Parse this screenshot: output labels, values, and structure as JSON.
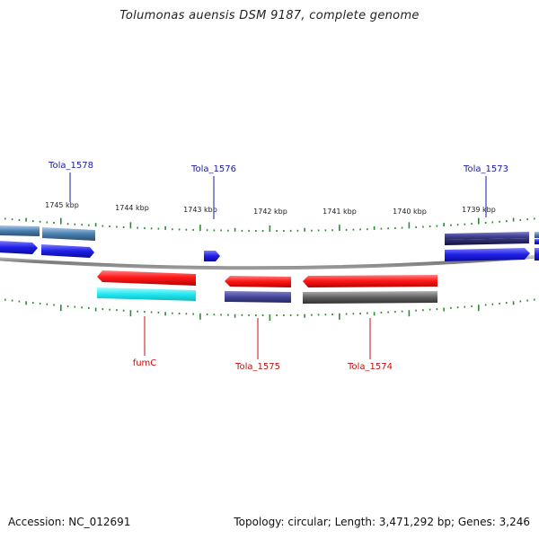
{
  "title": "Tolumonas auensis DSM 9187, complete genome",
  "footer": {
    "accession": "Accession: NC_012691",
    "summary": "Topology: circular; Length: 3,471,292 bp; Genes: 3,246"
  },
  "colors": {
    "top_label": "#1a1aa6",
    "bottom_label": "#c01010",
    "tick": "#2e8b2e",
    "backbone": "#8a8a8a",
    "red": "#ff1a1a",
    "cyan": "#22e8f0",
    "blue": "#1f1fe6",
    "navy": "#3a3a8a",
    "steel": "#4a7fb0",
    "gray": "#555555"
  },
  "ticks": [
    {
      "label": "1745 kbp"
    },
    {
      "label": "1744 kbp"
    },
    {
      "label": "1743 kbp"
    },
    {
      "label": "1742 kbp"
    },
    {
      "label": "1741 kbp"
    },
    {
      "label": "1740 kbp"
    },
    {
      "label": "1739 kbp"
    }
  ],
  "gene_labels_top": [
    "Tola_1578",
    "Tola_1576",
    "Tola_1573"
  ],
  "gene_labels_bottom": [
    "fumC",
    "Tola_1575",
    "Tola_1574"
  ]
}
